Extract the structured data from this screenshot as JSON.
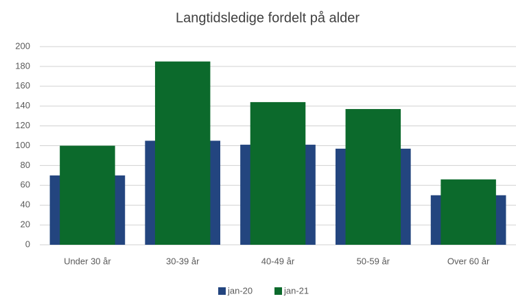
{
  "chart_data": {
    "type": "bar",
    "title": "Langtidsledige fordelt på alder",
    "categories": [
      "Under 30 år",
      "30-39 år",
      "40-49 år",
      "50-59 år",
      "Over 60 år"
    ],
    "series": [
      {
        "name": "jan-20",
        "color": "#23457f",
        "values": [
          70,
          105,
          101,
          97,
          50
        ]
      },
      {
        "name": "jan-21",
        "color": "#0c6a2c",
        "values": [
          100,
          185,
          144,
          137,
          66
        ]
      }
    ],
    "ylim": [
      0,
      200
    ],
    "yticks": [
      0,
      20,
      40,
      60,
      80,
      100,
      120,
      140,
      160,
      180,
      200
    ],
    "grid": true,
    "legend": "bottom"
  }
}
